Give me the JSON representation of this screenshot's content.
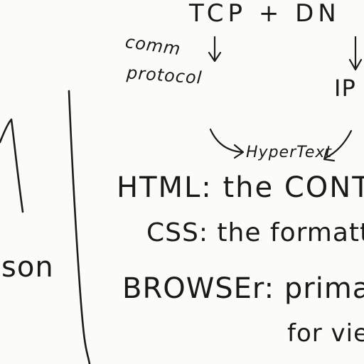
{
  "notes": {
    "top_heading": "TCP + DN",
    "comm_protocol": [
      "comm",
      "protocol"
    ],
    "ip": "IP",
    "hypertext": "HyperText",
    "html_line": "HTML: the CONT",
    "css_line": "CSS: the formatt",
    "browser_line": "BROWSEr: priman",
    "for_line": "for vie",
    "left_fragment": "son"
  }
}
